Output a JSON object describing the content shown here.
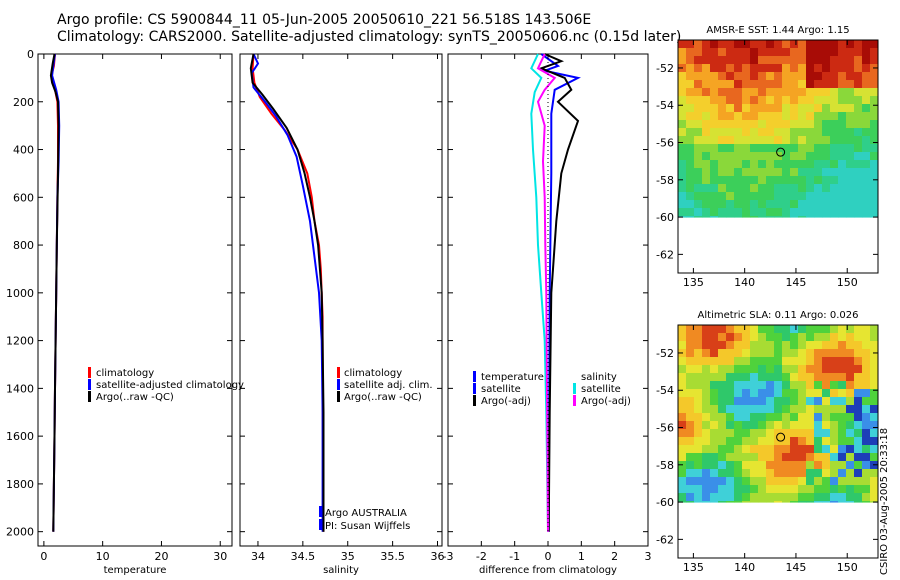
{
  "header": {
    "line1": "Argo profile: CS 5900844_11 05-Jun-2005 20050610_221 56.518S 143.506E",
    "line2": "Climatology: CARS2000. Satellite-adjusted climatology: synTS_20050606.nc (0.15d later)"
  },
  "stamp": "CSIRO 03-Aug-2005 20:33:18",
  "colors": {
    "climatology": "#ff0000",
    "satellite": "#0000ff",
    "argo": "#000000",
    "sal_satellite": "#00e5e5",
    "sal_argo": "#ff00ff"
  },
  "chart_data": [
    {
      "id": "temperature",
      "type": "line",
      "xlabel": "temperature",
      "xlim": [
        -1,
        32
      ],
      "ylim": [
        2060,
        0
      ],
      "x_ticks": [
        0,
        10,
        20,
        30
      ],
      "y_ticks": [
        0,
        200,
        400,
        600,
        800,
        1000,
        1200,
        1400,
        1600,
        1800,
        2000
      ],
      "legend": [
        "climatology",
        "satellite-adjusted climatology",
        "Argo(..raw -QC)"
      ],
      "series": [
        {
          "name": "climatology",
          "color": "#ff0000",
          "points": [
            [
              1.9,
              0
            ],
            [
              1.7,
              50
            ],
            [
              1.3,
              90
            ],
            [
              1.9,
              150
            ],
            [
              2.3,
              200
            ],
            [
              2.4,
              300
            ],
            [
              2.4,
              450
            ],
            [
              2.3,
              600
            ],
            [
              2.2,
              800
            ],
            [
              2.1,
              1000
            ],
            [
              2.0,
              1200
            ],
            [
              1.9,
              1400
            ],
            [
              1.8,
              1600
            ],
            [
              1.7,
              1800
            ],
            [
              1.6,
              2000
            ]
          ]
        },
        {
          "name": "satellite",
          "color": "#0000ff",
          "points": [
            [
              1.9,
              0
            ],
            [
              1.6,
              50
            ],
            [
              1.4,
              90
            ],
            [
              2.1,
              150
            ],
            [
              2.5,
              200
            ],
            [
              2.6,
              300
            ],
            [
              2.5,
              450
            ],
            [
              2.3,
              600
            ],
            [
              2.2,
              800
            ],
            [
              2.1,
              1000
            ],
            [
              2.0,
              1200
            ],
            [
              1.9,
              1400
            ],
            [
              1.8,
              1600
            ],
            [
              1.7,
              1800
            ],
            [
              1.6,
              2000
            ]
          ]
        },
        {
          "name": "Argo",
          "color": "#000000",
          "points": [
            [
              1.8,
              0
            ],
            [
              1.5,
              40
            ],
            [
              1.2,
              90
            ],
            [
              1.4,
              120
            ],
            [
              2.0,
              160
            ],
            [
              2.4,
              200
            ],
            [
              2.5,
              300
            ],
            [
              2.4,
              500
            ],
            [
              2.2,
              800
            ],
            [
              2.1,
              1000
            ],
            [
              2.0,
              1200
            ],
            [
              1.9,
              1400
            ],
            [
              1.8,
              1600
            ],
            [
              1.7,
              1800
            ],
            [
              1.6,
              2000
            ]
          ]
        }
      ]
    },
    {
      "id": "salinity",
      "type": "line",
      "xlabel": "salinity",
      "xlim": [
        33.8,
        36.05
      ],
      "ylim": [
        2060,
        0
      ],
      "x_ticks": [
        34,
        34.5,
        35,
        35.5,
        36
      ],
      "x_tick_labels": [
        "34",
        "34.5",
        "35",
        "35.5",
        "36"
      ],
      "legend": [
        "climatology",
        "satellite adj. clim.",
        "Argo(..raw -QC)"
      ],
      "series": [
        {
          "name": "climatology",
          "color": "#ff0000",
          "points": [
            [
              33.95,
              0
            ],
            [
              33.94,
              60
            ],
            [
              33.96,
              120
            ],
            [
              34.02,
              180
            ],
            [
              34.15,
              250
            ],
            [
              34.3,
              320
            ],
            [
              34.44,
              400
            ],
            [
              34.55,
              500
            ],
            [
              34.6,
              600
            ],
            [
              34.63,
              700
            ],
            [
              34.68,
              800
            ],
            [
              34.7,
              900
            ],
            [
              34.71,
              1000
            ],
            [
              34.72,
              1100
            ],
            [
              34.72,
              1400
            ],
            [
              34.73,
              2000
            ]
          ]
        },
        {
          "name": "satellite",
          "color": "#0000ff",
          "points": [
            [
              33.95,
              0
            ],
            [
              34.0,
              40
            ],
            [
              33.93,
              80
            ],
            [
              33.95,
              140
            ],
            [
              34.08,
              200
            ],
            [
              34.2,
              260
            ],
            [
              34.33,
              340
            ],
            [
              34.43,
              430
            ],
            [
              34.5,
              550
            ],
            [
              34.58,
              700
            ],
            [
              34.63,
              850
            ],
            [
              34.68,
              1000
            ],
            [
              34.71,
              1200
            ],
            [
              34.72,
              1500
            ],
            [
              34.72,
              2000
            ]
          ]
        },
        {
          "name": "Argo",
          "color": "#000000",
          "points": [
            [
              33.95,
              0
            ],
            [
              33.92,
              60
            ],
            [
              33.94,
              120
            ],
            [
              34.05,
              170
            ],
            [
              34.17,
              230
            ],
            [
              34.32,
              310
            ],
            [
              34.44,
              400
            ],
            [
              34.52,
              500
            ],
            [
              34.58,
              600
            ],
            [
              34.63,
              700
            ],
            [
              34.67,
              800
            ],
            [
              34.69,
              900
            ],
            [
              34.71,
              1000
            ],
            [
              34.72,
              1200
            ],
            [
              34.73,
              1500
            ],
            [
              34.73,
              2000
            ]
          ]
        }
      ],
      "annotations": [
        "Argo AUSTRALIA",
        "PI: Susan Wijffels"
      ]
    },
    {
      "id": "difference",
      "type": "line",
      "xlabel": "difference from climatology",
      "xlim": [
        -3,
        3
      ],
      "ylim": [
        2060,
        0
      ],
      "x_ticks": [
        -3,
        -2,
        -1,
        0,
        1,
        2,
        3
      ],
      "legend": [
        "temperature",
        "satellite",
        "Argo(-adj)",
        "salinity",
        "satellite",
        "Argo(-adj)"
      ],
      "series": [
        {
          "name": "temperature satellite",
          "color": "#0000ff",
          "points": [
            [
              -0.2,
              0
            ],
            [
              0.3,
              50
            ],
            [
              -0.1,
              70
            ],
            [
              0.9,
              100
            ],
            [
              0.2,
              150
            ],
            [
              0.1,
              250
            ],
            [
              0.1,
              500
            ],
            [
              0.05,
              1000
            ],
            [
              0.02,
              2000
            ]
          ]
        },
        {
          "name": "temperature Argo(-adj)",
          "color": "#000000",
          "points": [
            [
              -0.1,
              0
            ],
            [
              0.4,
              30
            ],
            [
              -0.2,
              60
            ],
            [
              0.5,
              100
            ],
            [
              0.7,
              150
            ],
            [
              0.3,
              200
            ],
            [
              0.9,
              280
            ],
            [
              0.6,
              400
            ],
            [
              0.4,
              500
            ],
            [
              0.25,
              700
            ],
            [
              0.15,
              900
            ],
            [
              0.1,
              1000
            ],
            [
              0.05,
              1500
            ],
            [
              0.02,
              2000
            ]
          ]
        },
        {
          "name": "salinity satellite",
          "color": "#00e5e5",
          "points": [
            [
              -0.3,
              0
            ],
            [
              -0.5,
              60
            ],
            [
              -0.2,
              100
            ],
            [
              -0.4,
              160
            ],
            [
              -0.5,
              250
            ],
            [
              -0.45,
              400
            ],
            [
              -0.35,
              600
            ],
            [
              -0.3,
              800
            ],
            [
              -0.2,
              1000
            ],
            [
              -0.1,
              1200
            ],
            [
              -0.05,
              1500
            ],
            [
              0.0,
              2000
            ]
          ]
        },
        {
          "name": "salinity Argo(-adj)",
          "color": "#ff00ff",
          "points": [
            [
              -0.1,
              0
            ],
            [
              -0.3,
              60
            ],
            [
              0.2,
              100
            ],
            [
              -0.1,
              150
            ],
            [
              -0.3,
              200
            ],
            [
              -0.1,
              300
            ],
            [
              -0.15,
              450
            ],
            [
              -0.1,
              600
            ],
            [
              -0.08,
              800
            ],
            [
              -0.05,
              1000
            ],
            [
              -0.03,
              1400
            ],
            [
              0.0,
              2000
            ]
          ]
        },
        {
          "name": "zero",
          "color": "#000000",
          "dotted": true,
          "points": [
            [
              0,
              0
            ],
            [
              0,
              2000
            ]
          ]
        }
      ]
    },
    {
      "id": "sst_map",
      "type": "heatmap",
      "title": "AMSR-E SST: 1.44 Argo: 1.15",
      "xlim": [
        133.5,
        153
      ],
      "ylim": [
        -63,
        -50.5
      ],
      "x_ticks": [
        135,
        140,
        145,
        150
      ],
      "y_ticks": [
        -52,
        -54,
        -56,
        -58,
        -60,
        -62
      ],
      "data_extent": [
        -60,
        -50.5
      ],
      "marker": [
        143.506,
        -56.518
      ]
    },
    {
      "id": "sla_map",
      "type": "heatmap",
      "title": "Altimetric SLA: 0.11 Argo: 0.026",
      "xlim": [
        133.5,
        153
      ],
      "ylim": [
        -63,
        -50.5
      ],
      "x_ticks": [
        135,
        140,
        145,
        150
      ],
      "y_ticks": [
        -52,
        -54,
        -56,
        -58,
        -60,
        -62
      ],
      "data_extent": [
        -60,
        -50.5
      ],
      "marker": [
        143.506,
        -56.518
      ]
    }
  ]
}
